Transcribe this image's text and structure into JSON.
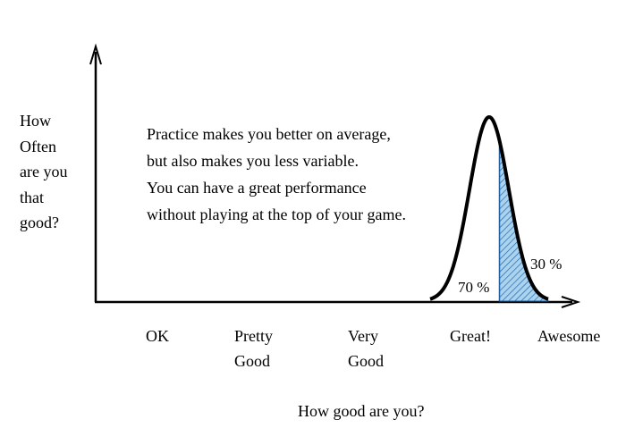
{
  "y_axis_label_lines": [
    "How",
    "Often",
    "are you",
    "that",
    "good?"
  ],
  "x_axis_label": "How good are you?",
  "annotation_lines": [
    "Practice makes you better on average,",
    "but also makes you less variable.",
    "You can have a great performance",
    "without playing at the top of your game."
  ],
  "categories": [
    {
      "lines": [
        "OK"
      ]
    },
    {
      "lines": [
        "Pretty",
        "Good"
      ]
    },
    {
      "lines": [
        "Very",
        "Good"
      ]
    },
    {
      "lines": [
        "Great!"
      ]
    },
    {
      "lines": [
        "Awesome"
      ]
    }
  ],
  "distribution": {
    "left_area": {
      "label": "70 %",
      "value": 70
    },
    "right_area": {
      "label": "30 %",
      "value": 30
    },
    "shaded_fill": "#a9d3ef",
    "hatch_color": "#1f5f9f",
    "curve_color": "#000000"
  }
}
